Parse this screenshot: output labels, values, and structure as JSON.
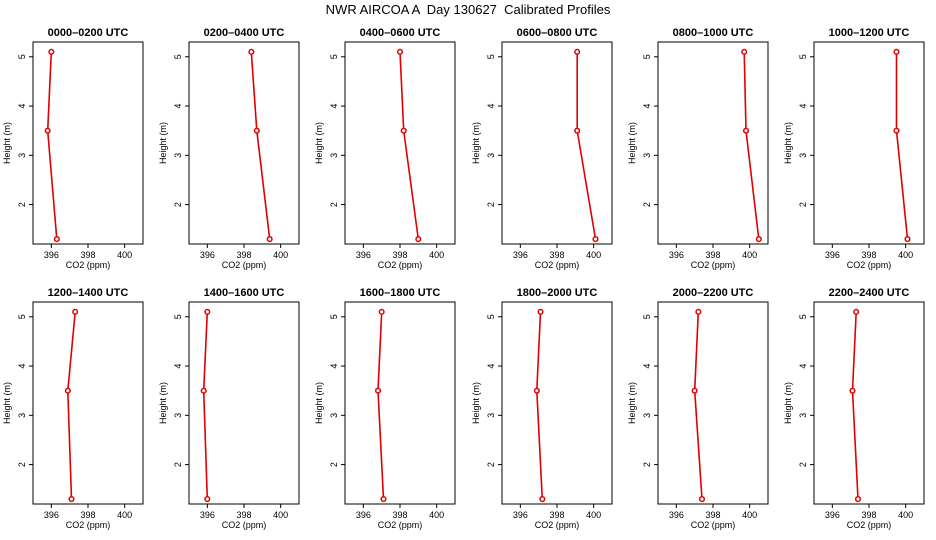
{
  "figure": {
    "title": "NWR AIRCOA A  Day 130627  Calibrated Profiles"
  },
  "style": {
    "line_color": "#e00000",
    "marker_color": "#e00000",
    "frame_color": "#000000"
  },
  "chart_data": [
    {
      "type": "line",
      "title": "0000–0200 UTC",
      "xlabel": "CO2 (ppm)",
      "ylabel": "Height (m)",
      "xlim": [
        395,
        401
      ],
      "ylim": [
        1.2,
        5.3
      ],
      "xticks": [
        "396",
        "398",
        "400"
      ],
      "yticks": [
        "2",
        "3",
        "4",
        "5"
      ],
      "grid": false,
      "series": [
        {
          "x": [
            396.0,
            395.8,
            396.3
          ],
          "y": [
            5.1,
            3.5,
            1.3
          ]
        }
      ]
    },
    {
      "type": "line",
      "title": "0200–0400 UTC",
      "xlabel": "CO2 (ppm)",
      "ylabel": "Height (m)",
      "xlim": [
        395,
        401
      ],
      "ylim": [
        1.2,
        5.3
      ],
      "xticks": [
        "396",
        "398",
        "400"
      ],
      "yticks": [
        "2",
        "3",
        "4",
        "5"
      ],
      "grid": false,
      "series": [
        {
          "x": [
            398.4,
            398.7,
            399.4
          ],
          "y": [
            5.1,
            3.5,
            1.3
          ]
        }
      ]
    },
    {
      "type": "line",
      "title": "0400–0600 UTC",
      "xlabel": "CO2 (ppm)",
      "ylabel": "Height (m)",
      "xlim": [
        395,
        401
      ],
      "ylim": [
        1.2,
        5.3
      ],
      "xticks": [
        "396",
        "398",
        "400"
      ],
      "yticks": [
        "2",
        "3",
        "4",
        "5"
      ],
      "grid": false,
      "series": [
        {
          "x": [
            398.0,
            398.2,
            399.0
          ],
          "y": [
            5.1,
            3.5,
            1.3
          ]
        }
      ]
    },
    {
      "type": "line",
      "title": "0600–0800 UTC",
      "xlabel": "CO2 (ppm)",
      "ylabel": "Height (m)",
      "xlim": [
        395,
        401
      ],
      "ylim": [
        1.2,
        5.3
      ],
      "xticks": [
        "396",
        "398",
        "400"
      ],
      "yticks": [
        "2",
        "3",
        "4",
        "5"
      ],
      "grid": false,
      "series": [
        {
          "x": [
            399.1,
            399.1,
            400.1
          ],
          "y": [
            5.1,
            3.5,
            1.3
          ]
        }
      ]
    },
    {
      "type": "line",
      "title": "0800–1000 UTC",
      "xlabel": "CO2 (ppm)",
      "ylabel": "Height (m)",
      "xlim": [
        395,
        401
      ],
      "ylim": [
        1.2,
        5.3
      ],
      "xticks": [
        "396",
        "398",
        "400"
      ],
      "yticks": [
        "2",
        "3",
        "4",
        "5"
      ],
      "grid": false,
      "series": [
        {
          "x": [
            399.7,
            399.8,
            400.5
          ],
          "y": [
            5.1,
            3.5,
            1.3
          ]
        }
      ]
    },
    {
      "type": "line",
      "title": "1000–1200 UTC",
      "xlabel": "CO2 (ppm)",
      "ylabel": "Height (m)",
      "xlim": [
        395,
        401
      ],
      "ylim": [
        1.2,
        5.3
      ],
      "xticks": [
        "396",
        "398",
        "400"
      ],
      "yticks": [
        "2",
        "3",
        "4",
        "5"
      ],
      "grid": false,
      "series": [
        {
          "x": [
            399.5,
            399.5,
            400.1
          ],
          "y": [
            5.1,
            3.5,
            1.3
          ]
        }
      ]
    },
    {
      "type": "line",
      "title": "1200–1400 UTC",
      "xlabel": "CO2 (ppm)",
      "ylabel": "Height (m)",
      "xlim": [
        395,
        401
      ],
      "ylim": [
        1.2,
        5.3
      ],
      "xticks": [
        "396",
        "398",
        "400"
      ],
      "yticks": [
        "2",
        "3",
        "4",
        "5"
      ],
      "grid": false,
      "series": [
        {
          "x": [
            397.3,
            396.9,
            397.1
          ],
          "y": [
            5.1,
            3.5,
            1.3
          ]
        }
      ]
    },
    {
      "type": "line",
      "title": "1400–1600 UTC",
      "xlabel": "CO2 (ppm)",
      "ylabel": "Height (m)",
      "xlim": [
        395,
        401
      ],
      "ylim": [
        1.2,
        5.3
      ],
      "xticks": [
        "396",
        "398",
        "400"
      ],
      "yticks": [
        "2",
        "3",
        "4",
        "5"
      ],
      "grid": false,
      "series": [
        {
          "x": [
            396.0,
            395.8,
            396.0
          ],
          "y": [
            5.1,
            3.5,
            1.3
          ]
        }
      ]
    },
    {
      "type": "line",
      "title": "1600–1800 UTC",
      "xlabel": "CO2 (ppm)",
      "ylabel": "Height (m)",
      "xlim": [
        395,
        401
      ],
      "ylim": [
        1.2,
        5.3
      ],
      "xticks": [
        "396",
        "398",
        "400"
      ],
      "yticks": [
        "2",
        "3",
        "4",
        "5"
      ],
      "grid": false,
      "series": [
        {
          "x": [
            397.0,
            396.8,
            397.1
          ],
          "y": [
            5.1,
            3.5,
            1.3
          ]
        }
      ]
    },
    {
      "type": "line",
      "title": "1800–2000 UTC",
      "xlabel": "CO2 (ppm)",
      "ylabel": "Height (m)",
      "xlim": [
        395,
        401
      ],
      "ylim": [
        1.2,
        5.3
      ],
      "xticks": [
        "396",
        "398",
        "400"
      ],
      "yticks": [
        "2",
        "3",
        "4",
        "5"
      ],
      "grid": false,
      "series": [
        {
          "x": [
            397.1,
            396.9,
            397.2
          ],
          "y": [
            5.1,
            3.5,
            1.3
          ]
        }
      ]
    },
    {
      "type": "line",
      "title": "2000–2200 UTC",
      "xlabel": "CO2 (ppm)",
      "ylabel": "Height (m)",
      "xlim": [
        395,
        401
      ],
      "ylim": [
        1.2,
        5.3
      ],
      "xticks": [
        "396",
        "398",
        "400"
      ],
      "yticks": [
        "2",
        "3",
        "4",
        "5"
      ],
      "grid": false,
      "series": [
        {
          "x": [
            397.2,
            397.0,
            397.4
          ],
          "y": [
            5.1,
            3.5,
            1.3
          ]
        }
      ]
    },
    {
      "type": "line",
      "title": "2200–2400 UTC",
      "xlabel": "CO2 (ppm)",
      "ylabel": "Height (m)",
      "xlim": [
        395,
        401
      ],
      "ylim": [
        1.2,
        5.3
      ],
      "xticks": [
        "396",
        "398",
        "400"
      ],
      "yticks": [
        "2",
        "3",
        "4",
        "5"
      ],
      "grid": false,
      "series": [
        {
          "x": [
            397.3,
            397.1,
            397.4
          ],
          "y": [
            5.1,
            3.5,
            1.3
          ]
        }
      ]
    }
  ]
}
